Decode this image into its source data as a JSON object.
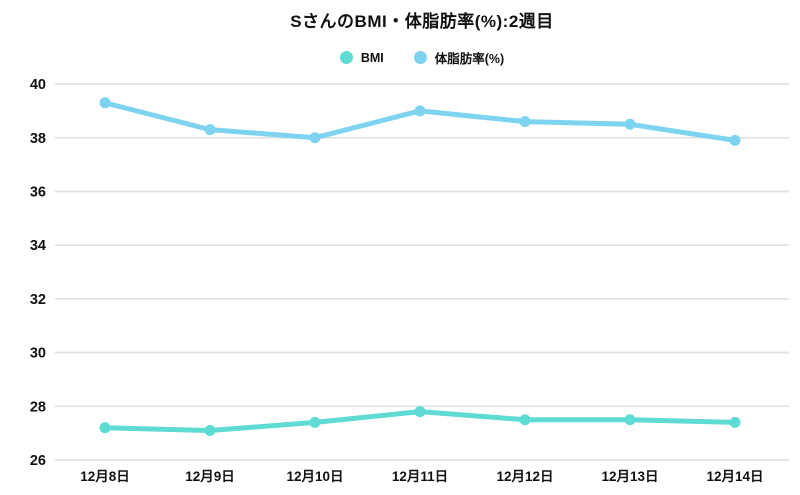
{
  "chart_data": {
    "type": "line",
    "title": "SさんのBMI・体脂肪率(%):2週目",
    "categories": [
      "12月8日",
      "12月9日",
      "12月10日",
      "12月11日",
      "12月12日",
      "12月13日",
      "12月14日"
    ],
    "series": [
      {
        "name": "BMI",
        "color": "#5edbd2",
        "values": [
          27.2,
          27.1,
          27.4,
          27.8,
          27.5,
          27.5,
          27.4
        ]
      },
      {
        "name": "体脂肪率(%)",
        "color": "#7ed3f0",
        "values": [
          39.3,
          38.3,
          38.0,
          39.0,
          38.6,
          38.5,
          37.9
        ]
      }
    ],
    "ylim": [
      26,
      40
    ],
    "yticks": [
      40,
      38,
      36,
      34,
      32,
      30,
      28,
      26
    ],
    "grid": true,
    "legend_position": "top",
    "text_color": "#111111",
    "grid_color": "#e2e2e2",
    "background": "#ffffff"
  }
}
